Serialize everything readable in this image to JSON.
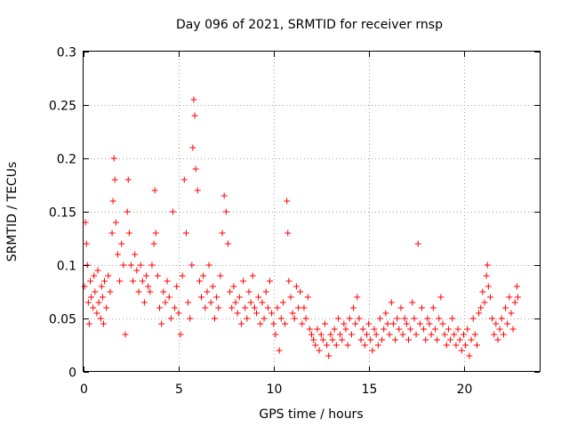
{
  "chart_data": {
    "type": "scatter",
    "title": "Day 096 of 2021, SRMTID for receiver rnsp",
    "xlabel": "GPS time / hours",
    "ylabel": "SRMTID / TECUs",
    "xlim": [
      0,
      24
    ],
    "ylim": [
      0,
      0.3
    ],
    "x_ticks": [
      0,
      5,
      10,
      15,
      20
    ],
    "x_tick_labels": [
      "0",
      "5",
      "10",
      "15",
      "20"
    ],
    "y_ticks": [
      0,
      0.05,
      0.1,
      0.15,
      0.2,
      0.25,
      0.3
    ],
    "y_tick_labels": [
      "0",
      "0.05",
      "0.1",
      "0.15",
      "0.2",
      "0.25",
      "0.3"
    ],
    "grid": true,
    "marker": "+",
    "color": "#ff0000",
    "series": [
      {
        "name": "SRMTID",
        "points": [
          [
            0.05,
            0.08
          ],
          [
            0.1,
            0.14
          ],
          [
            0.15,
            0.12
          ],
          [
            0.2,
            0.1
          ],
          [
            0.25,
            0.065
          ],
          [
            0.3,
            0.045
          ],
          [
            0.35,
            0.085
          ],
          [
            0.4,
            0.07
          ],
          [
            0.5,
            0.06
          ],
          [
            0.55,
            0.09
          ],
          [
            0.6,
            0.075
          ],
          [
            0.7,
            0.055
          ],
          [
            0.75,
            0.095
          ],
          [
            0.8,
            0.065
          ],
          [
            0.9,
            0.05
          ],
          [
            0.95,
            0.08
          ],
          [
            1.0,
            0.07
          ],
          [
            1.05,
            0.045
          ],
          [
            1.1,
            0.085
          ],
          [
            1.2,
            0.06
          ],
          [
            1.3,
            0.09
          ],
          [
            1.4,
            0.075
          ],
          [
            1.5,
            0.13
          ],
          [
            1.55,
            0.16
          ],
          [
            1.6,
            0.2
          ],
          [
            1.65,
            0.18
          ],
          [
            1.7,
            0.14
          ],
          [
            1.8,
            0.11
          ],
          [
            1.9,
            0.085
          ],
          [
            2.0,
            0.12
          ],
          [
            2.1,
            0.1
          ],
          [
            2.2,
            0.035
          ],
          [
            2.3,
            0.15
          ],
          [
            2.35,
            0.18
          ],
          [
            2.4,
            0.13
          ],
          [
            2.5,
            0.1
          ],
          [
            2.6,
            0.085
          ],
          [
            2.7,
            0.11
          ],
          [
            2.8,
            0.095
          ],
          [
            2.9,
            0.075
          ],
          [
            3.0,
            0.1
          ],
          [
            3.1,
            0.085
          ],
          [
            3.2,
            0.065
          ],
          [
            3.3,
            0.09
          ],
          [
            3.4,
            0.08
          ],
          [
            3.5,
            0.075
          ],
          [
            3.6,
            0.1
          ],
          [
            3.7,
            0.12
          ],
          [
            3.75,
            0.17
          ],
          [
            3.8,
            0.13
          ],
          [
            3.9,
            0.09
          ],
          [
            4.0,
            0.06
          ],
          [
            4.1,
            0.045
          ],
          [
            4.2,
            0.075
          ],
          [
            4.3,
            0.065
          ],
          [
            4.4,
            0.085
          ],
          [
            4.5,
            0.07
          ],
          [
            4.6,
            0.05
          ],
          [
            4.7,
            0.15
          ],
          [
            4.8,
            0.06
          ],
          [
            4.9,
            0.08
          ],
          [
            5.0,
            0.055
          ],
          [
            5.1,
            0.035
          ],
          [
            5.2,
            0.09
          ],
          [
            5.3,
            0.18
          ],
          [
            5.4,
            0.13
          ],
          [
            5.5,
            0.065
          ],
          [
            5.6,
            0.05
          ],
          [
            5.7,
            0.1
          ],
          [
            5.75,
            0.21
          ],
          [
            5.8,
            0.255
          ],
          [
            5.85,
            0.24
          ],
          [
            5.9,
            0.19
          ],
          [
            6.0,
            0.17
          ],
          [
            6.1,
            0.085
          ],
          [
            6.2,
            0.07
          ],
          [
            6.3,
            0.09
          ],
          [
            6.4,
            0.06
          ],
          [
            6.5,
            0.075
          ],
          [
            6.6,
            0.1
          ],
          [
            6.7,
            0.065
          ],
          [
            6.8,
            0.08
          ],
          [
            6.9,
            0.05
          ],
          [
            7.0,
            0.07
          ],
          [
            7.1,
            0.06
          ],
          [
            7.2,
            0.09
          ],
          [
            7.3,
            0.13
          ],
          [
            7.4,
            0.165
          ],
          [
            7.5,
            0.15
          ],
          [
            7.6,
            0.12
          ],
          [
            7.7,
            0.075
          ],
          [
            7.8,
            0.06
          ],
          [
            7.9,
            0.08
          ],
          [
            8.0,
            0.065
          ],
          [
            8.1,
            0.055
          ],
          [
            8.2,
            0.07
          ],
          [
            8.3,
            0.045
          ],
          [
            8.4,
            0.085
          ],
          [
            8.5,
            0.06
          ],
          [
            8.6,
            0.05
          ],
          [
            8.7,
            0.075
          ],
          [
            8.8,
            0.065
          ],
          [
            8.9,
            0.09
          ],
          [
            9.0,
            0.06
          ],
          [
            9.1,
            0.055
          ],
          [
            9.2,
            0.07
          ],
          [
            9.3,
            0.045
          ],
          [
            9.4,
            0.065
          ],
          [
            9.5,
            0.05
          ],
          [
            9.6,
            0.075
          ],
          [
            9.7,
            0.06
          ],
          [
            9.8,
            0.085
          ],
          [
            9.9,
            0.055
          ],
          [
            10.0,
            0.045
          ],
          [
            10.1,
            0.035
          ],
          [
            10.2,
            0.06
          ],
          [
            10.3,
            0.02
          ],
          [
            10.4,
            0.05
          ],
          [
            10.5,
            0.065
          ],
          [
            10.6,
            0.045
          ],
          [
            10.7,
            0.16
          ],
          [
            10.75,
            0.13
          ],
          [
            10.8,
            0.085
          ],
          [
            10.9,
            0.07
          ],
          [
            11.0,
            0.055
          ],
          [
            11.1,
            0.05
          ],
          [
            11.2,
            0.08
          ],
          [
            11.3,
            0.06
          ],
          [
            11.4,
            0.075
          ],
          [
            11.5,
            0.045
          ],
          [
            11.6,
            0.06
          ],
          [
            11.7,
            0.05
          ],
          [
            11.8,
            0.07
          ],
          [
            11.9,
            0.04
          ],
          [
            12.0,
            0.035
          ],
          [
            12.1,
            0.03
          ],
          [
            12.2,
            0.025
          ],
          [
            12.3,
            0.04
          ],
          [
            12.4,
            0.02
          ],
          [
            12.5,
            0.035
          ],
          [
            12.6,
            0.03
          ],
          [
            12.7,
            0.045
          ],
          [
            12.8,
            0.025
          ],
          [
            12.9,
            0.015
          ],
          [
            13.0,
            0.035
          ],
          [
            13.1,
            0.03
          ],
          [
            13.2,
            0.04
          ],
          [
            13.3,
            0.025
          ],
          [
            13.4,
            0.05
          ],
          [
            13.5,
            0.035
          ],
          [
            13.6,
            0.03
          ],
          [
            13.7,
            0.045
          ],
          [
            13.8,
            0.04
          ],
          [
            13.9,
            0.025
          ],
          [
            14.0,
            0.05
          ],
          [
            14.1,
            0.035
          ],
          [
            14.2,
            0.06
          ],
          [
            14.3,
            0.045
          ],
          [
            14.4,
            0.07
          ],
          [
            14.5,
            0.05
          ],
          [
            14.6,
            0.03
          ],
          [
            14.7,
            0.04
          ],
          [
            14.8,
            0.025
          ],
          [
            14.9,
            0.035
          ],
          [
            15.0,
            0.045
          ],
          [
            15.1,
            0.03
          ],
          [
            15.2,
            0.02
          ],
          [
            15.3,
            0.04
          ],
          [
            15.4,
            0.035
          ],
          [
            15.5,
            0.025
          ],
          [
            15.6,
            0.05
          ],
          [
            15.7,
            0.03
          ],
          [
            15.8,
            0.04
          ],
          [
            15.9,
            0.055
          ],
          [
            16.0,
            0.045
          ],
          [
            16.1,
            0.035
          ],
          [
            16.2,
            0.065
          ],
          [
            16.3,
            0.045
          ],
          [
            16.4,
            0.03
          ],
          [
            16.5,
            0.05
          ],
          [
            16.6,
            0.04
          ],
          [
            16.7,
            0.06
          ],
          [
            16.8,
            0.035
          ],
          [
            16.9,
            0.05
          ],
          [
            17.0,
            0.045
          ],
          [
            17.1,
            0.03
          ],
          [
            17.2,
            0.04
          ],
          [
            17.3,
            0.065
          ],
          [
            17.4,
            0.05
          ],
          [
            17.5,
            0.035
          ],
          [
            17.6,
            0.12
          ],
          [
            17.7,
            0.045
          ],
          [
            17.8,
            0.06
          ],
          [
            17.9,
            0.04
          ],
          [
            18.0,
            0.03
          ],
          [
            18.1,
            0.05
          ],
          [
            18.2,
            0.045
          ],
          [
            18.3,
            0.035
          ],
          [
            18.4,
            0.06
          ],
          [
            18.5,
            0.04
          ],
          [
            18.6,
            0.03
          ],
          [
            18.7,
            0.05
          ],
          [
            18.8,
            0.07
          ],
          [
            18.9,
            0.045
          ],
          [
            19.0,
            0.035
          ],
          [
            19.1,
            0.025
          ],
          [
            19.2,
            0.04
          ],
          [
            19.3,
            0.03
          ],
          [
            19.4,
            0.05
          ],
          [
            19.5,
            0.035
          ],
          [
            19.6,
            0.025
          ],
          [
            19.7,
            0.04
          ],
          [
            19.8,
            0.03
          ],
          [
            19.9,
            0.02
          ],
          [
            20.0,
            0.035
          ],
          [
            20.1,
            0.025
          ],
          [
            20.2,
            0.04
          ],
          [
            20.3,
            0.015
          ],
          [
            20.4,
            0.03
          ],
          [
            20.5,
            0.05
          ],
          [
            20.6,
            0.035
          ],
          [
            20.7,
            0.025
          ],
          [
            20.8,
            0.055
          ],
          [
            20.9,
            0.06
          ],
          [
            21.0,
            0.075
          ],
          [
            21.1,
            0.065
          ],
          [
            21.2,
            0.09
          ],
          [
            21.25,
            0.1
          ],
          [
            21.3,
            0.08
          ],
          [
            21.4,
            0.07
          ],
          [
            21.5,
            0.05
          ],
          [
            21.6,
            0.035
          ],
          [
            21.7,
            0.045
          ],
          [
            21.8,
            0.03
          ],
          [
            21.9,
            0.04
          ],
          [
            22.0,
            0.05
          ],
          [
            22.1,
            0.035
          ],
          [
            22.2,
            0.06
          ],
          [
            22.3,
            0.045
          ],
          [
            22.4,
            0.07
          ],
          [
            22.5,
            0.055
          ],
          [
            22.6,
            0.04
          ],
          [
            22.7,
            0.065
          ],
          [
            22.8,
            0.08
          ],
          [
            22.85,
            0.07
          ]
        ]
      }
    ]
  }
}
